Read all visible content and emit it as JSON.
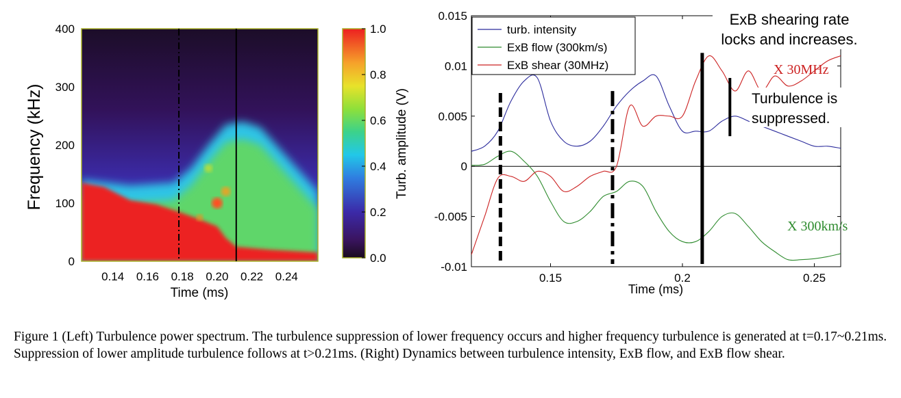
{
  "chart_data": [
    {
      "type": "heatmap",
      "ylabel": "Frequency (kHz)",
      "xlabel": "Time (ms)",
      "xticks": [
        "0.14",
        "0.16",
        "0.18",
        "0.20",
        "0.22",
        "0.24"
      ],
      "xtick_values": [
        0.14,
        0.16,
        0.18,
        0.2,
        0.22,
        0.24
      ],
      "xlim": [
        0.122,
        0.258
      ],
      "yticks": [
        "0",
        "100",
        "200",
        "300",
        "400"
      ],
      "ytick_values": [
        0,
        100,
        200,
        300,
        400
      ],
      "ylim": [
        0,
        400
      ],
      "colorbar": {
        "label": "Turb. amplitude (V)",
        "ticks": [
          "0.0",
          "0.2",
          "0.4",
          "0.6",
          "0.8",
          "1.0"
        ],
        "tick_values": [
          0,
          0.2,
          0.4,
          0.6,
          0.8,
          1.0
        ],
        "colormap": "jet"
      },
      "markers": [
        {
          "x": 0.178,
          "style": "dash-dot"
        },
        {
          "x": 0.211,
          "style": "solid"
        }
      ],
      "high_amplitude_boundary": [
        {
          "t": 0.122,
          "f": 135
        },
        {
          "t": 0.135,
          "f": 128
        },
        {
          "t": 0.15,
          "f": 105
        },
        {
          "t": 0.165,
          "f": 98
        },
        {
          "t": 0.178,
          "f": 85
        },
        {
          "t": 0.19,
          "f": 72
        },
        {
          "t": 0.2,
          "f": 60
        },
        {
          "t": 0.205,
          "f": 40
        },
        {
          "t": 0.211,
          "f": 25
        },
        {
          "t": 0.23,
          "f": 20
        },
        {
          "t": 0.258,
          "f": 15
        }
      ],
      "turbulent_region_top": [
        {
          "t": 0.122,
          "f": 140
        },
        {
          "t": 0.15,
          "f": 130
        },
        {
          "t": 0.175,
          "f": 135
        },
        {
          "t": 0.185,
          "f": 160
        },
        {
          "t": 0.195,
          "f": 200
        },
        {
          "t": 0.205,
          "f": 235
        },
        {
          "t": 0.215,
          "f": 240
        },
        {
          "t": 0.225,
          "f": 230
        },
        {
          "t": 0.24,
          "f": 180
        },
        {
          "t": 0.258,
          "f": 120
        }
      ]
    },
    {
      "type": "line",
      "xlabel": "Time (ms)",
      "xlim": [
        0.12,
        0.26
      ],
      "ylim": [
        -0.01,
        0.015
      ],
      "xticks": [
        "0.15",
        "0.2",
        "0.25"
      ],
      "xtick_values": [
        0.15,
        0.2,
        0.25
      ],
      "yticks": [
        "-0.01",
        "-0.005",
        "0",
        "0.005",
        "0.01",
        "0.015"
      ],
      "ytick_values": [
        -0.01,
        -0.005,
        0,
        0.005,
        0.01,
        0.015
      ],
      "legend_position": "top-left",
      "series": [
        {
          "name": "turb. intensity",
          "color": "#2b2b9c",
          "x": [
            0.12,
            0.125,
            0.13,
            0.135,
            0.14,
            0.145,
            0.15,
            0.155,
            0.16,
            0.165,
            0.17,
            0.175,
            0.18,
            0.185,
            0.19,
            0.195,
            0.2,
            0.205,
            0.21,
            0.215,
            0.22,
            0.225,
            0.23,
            0.235,
            0.24,
            0.245,
            0.25,
            0.255,
            0.26
          ],
          "y": [
            0.0015,
            0.002,
            0.0035,
            0.0065,
            0.0085,
            0.0088,
            0.0045,
            0.0025,
            0.002,
            0.0025,
            0.004,
            0.006,
            0.0075,
            0.0085,
            0.009,
            0.006,
            0.0035,
            0.0035,
            0.0035,
            0.0045,
            0.005,
            0.0045,
            0.004,
            0.0035,
            0.003,
            0.0025,
            0.002,
            0.002,
            0.0018
          ]
        },
        {
          "name": "ExB flow (300km/s)",
          "color": "#2e8b2e",
          "x": [
            0.12,
            0.125,
            0.13,
            0.135,
            0.14,
            0.145,
            0.15,
            0.155,
            0.16,
            0.165,
            0.17,
            0.175,
            0.18,
            0.185,
            0.19,
            0.195,
            0.2,
            0.205,
            0.21,
            0.215,
            0.22,
            0.225,
            0.23,
            0.235,
            0.24,
            0.245,
            0.25,
            0.255,
            0.26
          ],
          "y": [
            0.0001,
            0.0002,
            0.001,
            0.0015,
            0.0005,
            -0.001,
            -0.0035,
            -0.0055,
            -0.0055,
            -0.0045,
            -0.003,
            -0.0025,
            -0.0015,
            -0.002,
            -0.0045,
            -0.0065,
            -0.0075,
            -0.0075,
            -0.0065,
            -0.005,
            -0.0047,
            -0.006,
            -0.0075,
            -0.0085,
            -0.0093,
            -0.0093,
            -0.0092,
            -0.009,
            -0.0087
          ]
        },
        {
          "name": "ExB shear (30MHz)",
          "color": "#cc2222",
          "x": [
            0.12,
            0.125,
            0.13,
            0.135,
            0.14,
            0.145,
            0.15,
            0.155,
            0.16,
            0.165,
            0.17,
            0.175,
            0.18,
            0.185,
            0.19,
            0.195,
            0.2,
            0.205,
            0.21,
            0.215,
            0.22,
            0.225,
            0.23,
            0.235,
            0.24,
            0.245,
            0.25,
            0.255,
            0.26
          ],
          "y": [
            -0.0088,
            -0.005,
            -0.0012,
            -0.001,
            -0.0015,
            -0.0005,
            -0.001,
            -0.0025,
            -0.002,
            -0.001,
            -0.0005,
            0.0,
            0.006,
            0.004,
            0.005,
            0.005,
            0.005,
            0.0085,
            0.011,
            0.0095,
            0.0075,
            0.0095,
            0.0075,
            0.009,
            0.008,
            0.0085,
            0.0095,
            0.0105,
            0.011
          ]
        }
      ],
      "vertical_markers": [
        {
          "x": 0.131,
          "style": "dashed"
        },
        {
          "x": 0.1735,
          "style": "dash-dot"
        },
        {
          "x": 0.2075,
          "style": "solid"
        },
        {
          "x": 0.218,
          "style": "solid-short",
          "ymin": 0.003,
          "ymax": 0.0088
        }
      ],
      "annotations": {
        "shear_rate": [
          "ExB shearing rate",
          "locks and increases."
        ],
        "suppressed": [
          "Turbulence is",
          "suppressed."
        ],
        "x30": "X 30MHz",
        "x300": "X 300km/s"
      }
    }
  ],
  "caption": "Figure 1  (Left) Turbulence power spectrum. The turbulence suppression of lower frequency occurs and higher frequency turbulence is generated at t=0.17~0.21ms. Suppression of lower amplitude turbulence follows at t>0.21ms. (Right) Dynamics between turbulence intensity, ExB flow, and ExB flow shear."
}
